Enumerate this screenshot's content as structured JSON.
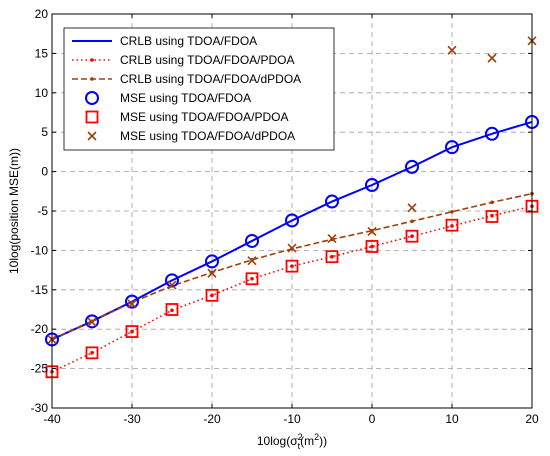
{
  "chart_data": {
    "type": "line",
    "xlabel_main": "10log(σ",
    "xlabel_sup": "2",
    "xlabel_sub": "t",
    "xlabel_inner": "(m",
    "xlabel_inner_sup": "2",
    "xlabel_close": "))",
    "ylabel": "10log(position MSE(m))",
    "xlim": [
      -40,
      20
    ],
    "ylim": [
      -30,
      20
    ],
    "xticks": [
      -40,
      -30,
      -20,
      -10,
      0,
      10,
      20
    ],
    "yticks": [
      -30,
      -25,
      -20,
      -15,
      -10,
      -5,
      0,
      5,
      10,
      15,
      20
    ],
    "grid": true,
    "legend_position": "top-left",
    "series": [
      {
        "name": "CRLB using TDOA/FDOA",
        "kind": "line",
        "color": "#0000ff",
        "style": "solid",
        "x": [
          -40,
          -35,
          -30,
          -25,
          -20,
          -15,
          -10,
          -5,
          0,
          5,
          10,
          15,
          20
        ],
        "y": [
          -21.3,
          -19.0,
          -16.5,
          -13.8,
          -11.4,
          -8.8,
          -6.2,
          -3.8,
          -1.7,
          0.6,
          3.1,
          4.8,
          6.3
        ]
      },
      {
        "name": "CRLB using TDOA/FDOA/PDOA",
        "kind": "line",
        "color": "#ff0000",
        "style": "dotted",
        "x": [
          -40,
          -35,
          -30,
          -25,
          -20,
          -15,
          -10,
          -5,
          0,
          5,
          10,
          15,
          20
        ],
        "y": [
          -25.4,
          -23.0,
          -20.3,
          -17.6,
          -15.7,
          -13.6,
          -12.0,
          -10.8,
          -9.5,
          -8.2,
          -6.9,
          -5.6,
          -4.4
        ]
      },
      {
        "name": "CRLB using TDOA/FDOA/dPDOA",
        "kind": "line",
        "color": "#a0400c",
        "style": "dashed",
        "x": [
          -40,
          -35,
          -30,
          -25,
          -20,
          -15,
          -10,
          -5,
          0,
          5,
          10,
          15,
          20
        ],
        "y": [
          -21.3,
          -19.0,
          -16.6,
          -14.5,
          -12.8,
          -11.2,
          -9.8,
          -8.6,
          -7.5,
          -6.3,
          -5.1,
          -3.9,
          -2.8
        ]
      },
      {
        "name": "MSE using TDOA/FDOA",
        "kind": "marker",
        "marker": "circle",
        "color": "#0000ff",
        "x": [
          -40,
          -35,
          -30,
          -25,
          -20,
          -15,
          -10,
          -5,
          0,
          5,
          10,
          15,
          20
        ],
        "y": [
          -21.3,
          -19.0,
          -16.5,
          -13.8,
          -11.4,
          -8.8,
          -6.2,
          -3.8,
          -1.7,
          0.6,
          3.1,
          4.8,
          6.3
        ]
      },
      {
        "name": "MSE using TDOA/FDOA/PDOA",
        "kind": "marker",
        "marker": "square",
        "color": "#ff0000",
        "x": [
          -40,
          -35,
          -30,
          -25,
          -20,
          -15,
          -10,
          -5,
          0,
          5,
          10,
          15,
          20
        ],
        "y": [
          -25.4,
          -23.0,
          -20.3,
          -17.5,
          -15.7,
          -13.6,
          -12.0,
          -10.8,
          -9.5,
          -8.2,
          -6.8,
          -5.7,
          -4.4
        ]
      },
      {
        "name": "MSE using TDOA/FDOA/dPDOA",
        "kind": "marker",
        "marker": "x",
        "color": "#a0400c",
        "x": [
          -40,
          -35,
          -30,
          -25,
          -20,
          -15,
          -10,
          -5,
          0,
          5,
          10,
          15,
          20
        ],
        "y": [
          -21.3,
          -19.1,
          -16.8,
          -14.4,
          -12.9,
          -11.3,
          -9.7,
          -8.5,
          -7.6,
          -4.6,
          15.4,
          14.4,
          16.6
        ]
      }
    ]
  }
}
